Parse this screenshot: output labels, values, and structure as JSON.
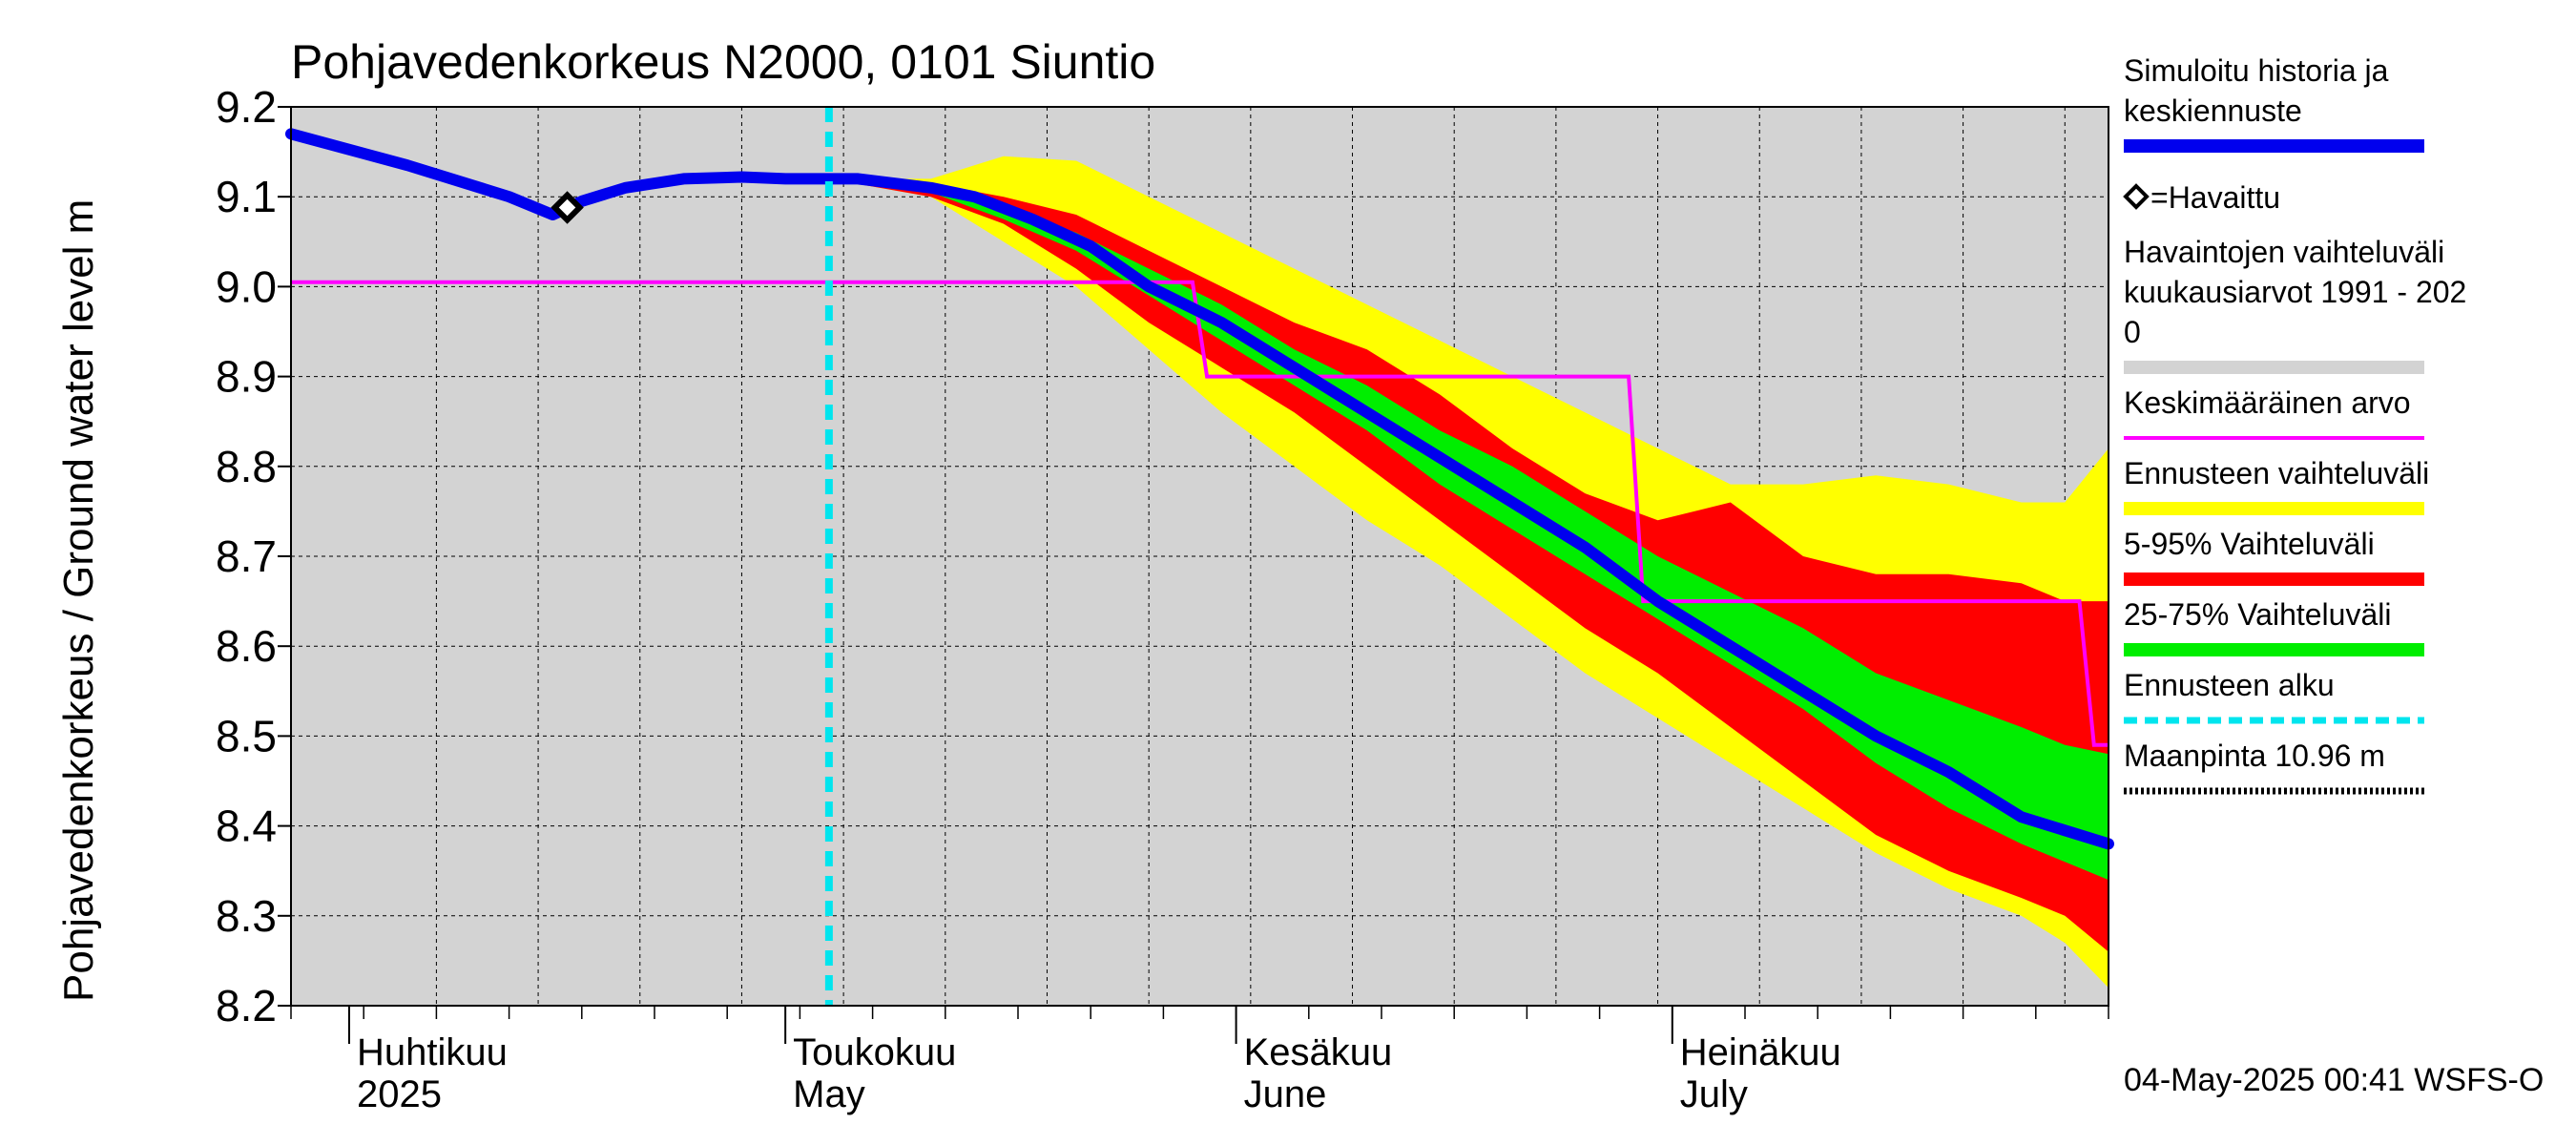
{
  "chart_data": {
    "type": "area",
    "title": "Pohjavedenkorkeus N2000, 0101 Siuntio",
    "ylabel": "Pohjavedenkorkeus / Ground water level   m",
    "ylim": [
      8.2,
      9.2
    ],
    "y_ticks": [
      "9.2",
      "9.1",
      "9.0",
      "8.9",
      "8.8",
      "8.7",
      "8.6",
      "8.5",
      "8.4",
      "8.3",
      "8.2"
    ],
    "x_range": [
      "2025-03-28",
      "2025-07-31"
    ],
    "x_ticks": [
      {
        "date": "2025-04-01",
        "label1": "Huhtikuu",
        "label2": "2025"
      },
      {
        "date": "2025-05-01",
        "label1": "Toukokuu",
        "label2": "May"
      },
      {
        "date": "2025-06-01",
        "label1": "Kesäkuu",
        "label2": "June"
      },
      {
        "date": "2025-07-01",
        "label1": "Heinäkuu",
        "label2": "July"
      }
    ],
    "grid": true,
    "legend_placement": "right",
    "forecast_start": "2025-05-04",
    "observed": [
      {
        "x": "2025-04-16",
        "y": 9.088
      }
    ],
    "series": [
      {
        "name": "Simuloitu historia ja keskiennuste",
        "color": "#0000ee",
        "points": [
          [
            "2025-03-28",
            9.17
          ],
          [
            "2025-04-05",
            9.135
          ],
          [
            "2025-04-12",
            9.1
          ],
          [
            "2025-04-15",
            9.08
          ],
          [
            "2025-04-17",
            9.095
          ],
          [
            "2025-04-20",
            9.11
          ],
          [
            "2025-04-24",
            9.12
          ],
          [
            "2025-04-28",
            9.122
          ],
          [
            "2025-05-01",
            9.12
          ],
          [
            "2025-05-06",
            9.12
          ],
          [
            "2025-05-11",
            9.11
          ],
          [
            "2025-05-14",
            9.1
          ],
          [
            "2025-05-18",
            9.075
          ],
          [
            "2025-05-22",
            9.045
          ],
          [
            "2025-05-26",
            9.0
          ],
          [
            "2025-05-31",
            8.96
          ],
          [
            "2025-06-05",
            8.91
          ],
          [
            "2025-06-10",
            8.86
          ],
          [
            "2025-06-15",
            8.81
          ],
          [
            "2025-06-20",
            8.76
          ],
          [
            "2025-06-25",
            8.71
          ],
          [
            "2025-06-30",
            8.65
          ],
          [
            "2025-07-05",
            8.6
          ],
          [
            "2025-07-10",
            8.55
          ],
          [
            "2025-07-15",
            8.5
          ],
          [
            "2025-07-20",
            8.46
          ],
          [
            "2025-07-25",
            8.41
          ],
          [
            "2025-07-31",
            8.38
          ]
        ]
      },
      {
        "name": "Keskimääräinen arvo",
        "color": "#ff00ff",
        "points": [
          [
            "2025-03-28",
            9.005
          ],
          [
            "2025-05-29",
            9.005
          ],
          [
            "2025-05-30",
            8.9
          ],
          [
            "2025-06-28",
            8.9
          ],
          [
            "2025-06-29",
            8.65
          ],
          [
            "2025-07-29",
            8.65
          ],
          [
            "2025-07-30",
            8.49
          ],
          [
            "2025-07-31",
            8.49
          ]
        ]
      }
    ],
    "bands": [
      {
        "name": "Ennusteen vaihteluväli",
        "color": "#ffff00",
        "x": [
          "2025-05-04",
          "2025-05-11",
          "2025-05-16",
          "2025-05-21",
          "2025-05-26",
          "2025-05-31",
          "2025-06-05",
          "2025-06-10",
          "2025-06-15",
          "2025-06-20",
          "2025-06-25",
          "2025-06-30",
          "2025-07-05",
          "2025-07-10",
          "2025-07-15",
          "2025-07-20",
          "2025-07-25",
          "2025-07-28",
          "2025-07-31"
        ],
        "upper": [
          9.12,
          9.12,
          9.145,
          9.14,
          9.1,
          9.06,
          9.02,
          8.98,
          8.94,
          8.9,
          8.86,
          8.82,
          8.78,
          8.78,
          8.79,
          8.78,
          8.76,
          8.76,
          8.82
        ],
        "lower": [
          9.12,
          9.1,
          9.05,
          9.0,
          8.93,
          8.86,
          8.8,
          8.74,
          8.69,
          8.63,
          8.57,
          8.52,
          8.47,
          8.42,
          8.37,
          8.33,
          8.3,
          8.27,
          8.22
        ]
      },
      {
        "name": "5-95% Vaihteluväli",
        "color": "#ff0000",
        "x": [
          "2025-05-04",
          "2025-05-11",
          "2025-05-16",
          "2025-05-21",
          "2025-05-26",
          "2025-05-31",
          "2025-06-05",
          "2025-06-10",
          "2025-06-15",
          "2025-06-20",
          "2025-06-25",
          "2025-06-30",
          "2025-07-05",
          "2025-07-10",
          "2025-07-15",
          "2025-07-20",
          "2025-07-25",
          "2025-07-28",
          "2025-07-31"
        ],
        "upper": [
          9.12,
          9.115,
          9.1,
          9.08,
          9.04,
          9.0,
          8.96,
          8.93,
          8.88,
          8.82,
          8.77,
          8.74,
          8.76,
          8.7,
          8.68,
          8.68,
          8.67,
          8.65,
          8.65
        ],
        "lower": [
          9.12,
          9.1,
          9.07,
          9.02,
          8.96,
          8.91,
          8.86,
          8.8,
          8.74,
          8.68,
          8.62,
          8.57,
          8.51,
          8.45,
          8.39,
          8.35,
          8.32,
          8.3,
          8.26
        ]
      },
      {
        "name": "25-75% Vaihteluväli",
        "color": "#00ee00",
        "x": [
          "2025-05-04",
          "2025-05-11",
          "2025-05-16",
          "2025-05-21",
          "2025-05-26",
          "2025-05-31",
          "2025-06-05",
          "2025-06-10",
          "2025-06-15",
          "2025-06-20",
          "2025-06-25",
          "2025-06-30",
          "2025-07-05",
          "2025-07-10",
          "2025-07-15",
          "2025-07-20",
          "2025-07-25",
          "2025-07-28",
          "2025-07-31"
        ],
        "upper": [
          9.12,
          9.115,
          9.09,
          9.06,
          9.02,
          8.98,
          8.93,
          8.89,
          8.84,
          8.8,
          8.75,
          8.7,
          8.66,
          8.62,
          8.57,
          8.54,
          8.51,
          8.49,
          8.48
        ],
        "lower": [
          9.12,
          9.105,
          9.075,
          9.04,
          8.99,
          8.94,
          8.89,
          8.84,
          8.78,
          8.73,
          8.68,
          8.63,
          8.58,
          8.53,
          8.47,
          8.42,
          8.38,
          8.36,
          8.34
        ]
      }
    ],
    "background_band": {
      "name": "Havaintojen vaihteluväli kuukausiarvot 1991 - 2020",
      "color": "#d3d3d3"
    },
    "legend": [
      {
        "lines": [
          "Simuloitu historia ja",
          "keskiennuste"
        ],
        "kind": "line",
        "color": "#0000ee"
      },
      {
        "lines": [
          "=Havaittu"
        ],
        "kind": "marker"
      },
      {
        "lines": [
          "Havaintojen vaihteluväli",
          " kuukausiarvot 1991 - 202",
          "0"
        ],
        "kind": "line",
        "color": "#d3d3d3"
      },
      {
        "lines": [
          "Keskimääräinen arvo"
        ],
        "kind": "thin",
        "color": "#ff00ff"
      },
      {
        "lines": [
          "Ennusteen vaihteluväli"
        ],
        "kind": "line",
        "color": "#ffff00"
      },
      {
        "lines": [
          "5-95% Vaihteluväli"
        ],
        "kind": "line",
        "color": "#ff0000"
      },
      {
        "lines": [
          "25-75% Vaihteluväli"
        ],
        "kind": "line",
        "color": "#00ee00"
      },
      {
        "lines": [
          "Ennusteen alku"
        ],
        "kind": "dashed",
        "color": "#00e5ee"
      },
      {
        "lines": [
          "Maanpinta 10.96 m"
        ],
        "kind": "dotted",
        "color": "#000000"
      }
    ],
    "footer": "04-May-2025 00:41 WSFS-O"
  }
}
